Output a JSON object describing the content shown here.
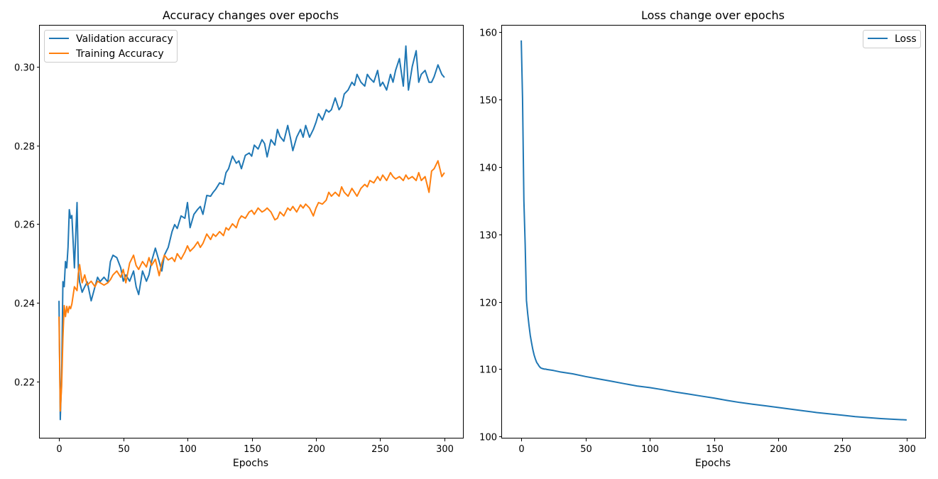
{
  "colors": {
    "blue": "#1f77b4",
    "orange": "#ff7f0e"
  },
  "chart_data": [
    {
      "type": "line",
      "title": "Accuracy changes over epochs",
      "xlabel": "Epochs",
      "ylabel": "",
      "xlim": [
        -15,
        315
      ],
      "ylim": [
        0.2055,
        0.3105
      ],
      "xticks": [
        0,
        50,
        100,
        150,
        200,
        250,
        300
      ],
      "yticks": [
        0.22,
        0.24,
        0.26,
        0.28,
        0.3
      ],
      "ytick_labels": [
        "0.22",
        "0.24",
        "0.26",
        "0.28",
        "0.30"
      ],
      "legend": "top-left",
      "grid": false,
      "series": [
        {
          "name": "Validation accuracy",
          "color": "#1f77b4",
          "x": [
            0,
            1,
            2,
            3,
            4,
            5,
            6,
            7,
            8,
            9,
            10,
            12,
            14,
            15,
            16,
            18,
            20,
            22,
            25,
            28,
            30,
            32,
            35,
            38,
            40,
            42,
            45,
            48,
            50,
            52,
            55,
            58,
            60,
            62,
            65,
            68,
            70,
            72,
            75,
            78,
            80,
            82,
            85,
            88,
            90,
            92,
            95,
            98,
            100,
            102,
            105,
            108,
            110,
            112,
            115,
            118,
            120,
            122,
            125,
            128,
            130,
            132,
            135,
            138,
            140,
            142,
            145,
            148,
            150,
            152,
            155,
            158,
            160,
            162,
            165,
            168,
            170,
            172,
            175,
            178,
            180,
            182,
            185,
            188,
            190,
            192,
            195,
            198,
            200,
            202,
            205,
            208,
            210,
            212,
            215,
            218,
            220,
            222,
            225,
            228,
            230,
            232,
            235,
            238,
            240,
            242,
            245,
            248,
            250,
            252,
            255,
            258,
            260,
            262,
            265,
            268,
            270,
            272,
            275,
            278,
            280,
            282,
            285,
            288,
            290,
            292,
            295,
            298,
            300
          ],
          "values": [
            0.2405,
            0.2103,
            0.2212,
            0.2454,
            0.2441,
            0.2505,
            0.2489,
            0.2541,
            0.2637,
            0.2615,
            0.2622,
            0.2489,
            0.2655,
            0.2491,
            0.2453,
            0.2427,
            0.2441,
            0.2453,
            0.2405,
            0.2441,
            0.2465,
            0.2454,
            0.2465,
            0.2453,
            0.2505,
            0.2521,
            0.2515,
            0.2489,
            0.2455,
            0.2471,
            0.2455,
            0.2481,
            0.2441,
            0.2421,
            0.2481,
            0.2455,
            0.2471,
            0.2505,
            0.2539,
            0.2505,
            0.2481,
            0.2521,
            0.2541,
            0.2581,
            0.2599,
            0.2589,
            0.2621,
            0.2615,
            0.2655,
            0.2591,
            0.2625,
            0.2638,
            0.2645,
            0.2625,
            0.2673,
            0.2671,
            0.2681,
            0.2689,
            0.2705,
            0.2701,
            0.2731,
            0.2741,
            0.2773,
            0.2755,
            0.2761,
            0.2741,
            0.2775,
            0.2781,
            0.2773,
            0.2801,
            0.2791,
            0.2815,
            0.2805,
            0.2771,
            0.2815,
            0.2801,
            0.2841,
            0.2823,
            0.2811,
            0.2851,
            0.2821,
            0.2787,
            0.2821,
            0.2841,
            0.2821,
            0.2851,
            0.2821,
            0.2841,
            0.2859,
            0.2881,
            0.2865,
            0.2891,
            0.2885,
            0.2891,
            0.2921,
            0.2891,
            0.2901,
            0.2931,
            0.2941,
            0.2961,
            0.2953,
            0.2981,
            0.2961,
            0.2951,
            0.2981,
            0.2971,
            0.2961,
            0.2991,
            0.2951,
            0.2961,
            0.2941,
            0.2981,
            0.2961,
            0.2991,
            0.3021,
            0.2951,
            0.3053,
            0.2941,
            0.3001,
            0.3041,
            0.2961,
            0.2981,
            0.2991,
            0.2961,
            0.2961,
            0.2975,
            0.3005,
            0.2981,
            0.2973
          ]
        },
        {
          "name": "Training Accuracy",
          "color": "#ff7f0e",
          "x": [
            0,
            1,
            2,
            3,
            4,
            5,
            6,
            7,
            8,
            9,
            10,
            12,
            14,
            15,
            16,
            18,
            20,
            22,
            25,
            28,
            30,
            32,
            35,
            38,
            40,
            42,
            45,
            48,
            50,
            52,
            55,
            58,
            60,
            62,
            65,
            68,
            70,
            72,
            75,
            78,
            80,
            82,
            85,
            88,
            90,
            92,
            95,
            98,
            100,
            102,
            105,
            108,
            110,
            112,
            115,
            118,
            120,
            122,
            125,
            128,
            130,
            132,
            135,
            138,
            140,
            142,
            145,
            148,
            150,
            152,
            155,
            158,
            160,
            162,
            165,
            168,
            170,
            172,
            175,
            178,
            180,
            182,
            185,
            188,
            190,
            192,
            195,
            198,
            200,
            202,
            205,
            208,
            210,
            212,
            215,
            218,
            220,
            222,
            225,
            228,
            230,
            232,
            235,
            238,
            240,
            242,
            245,
            248,
            250,
            252,
            255,
            258,
            260,
            262,
            265,
            268,
            270,
            272,
            275,
            278,
            280,
            282,
            285,
            288,
            290,
            292,
            295,
            298,
            300
          ],
          "values": [
            0.2365,
            0.2125,
            0.2188,
            0.2311,
            0.2393,
            0.2365,
            0.2391,
            0.2375,
            0.2391,
            0.2385,
            0.2397,
            0.2441,
            0.2431,
            0.2475,
            0.2497,
            0.2451,
            0.2471,
            0.2445,
            0.2455,
            0.2441,
            0.2455,
            0.2451,
            0.2445,
            0.2451,
            0.2459,
            0.2471,
            0.2481,
            0.2465,
            0.2485,
            0.2451,
            0.2501,
            0.2521,
            0.2495,
            0.2485,
            0.2505,
            0.2491,
            0.2515,
            0.2495,
            0.2511,
            0.2469,
            0.2501,
            0.2521,
            0.2509,
            0.2515,
            0.2505,
            0.2525,
            0.2511,
            0.2529,
            0.2545,
            0.2531,
            0.2541,
            0.2555,
            0.2541,
            0.2551,
            0.2575,
            0.2561,
            0.2575,
            0.2569,
            0.2581,
            0.2571,
            0.2591,
            0.2585,
            0.2601,
            0.2591,
            0.2611,
            0.2621,
            0.2615,
            0.2631,
            0.2635,
            0.2625,
            0.2641,
            0.2631,
            0.2635,
            0.2641,
            0.2631,
            0.2611,
            0.2615,
            0.2631,
            0.2621,
            0.2641,
            0.2635,
            0.2645,
            0.2631,
            0.2649,
            0.2641,
            0.2651,
            0.2641,
            0.2621,
            0.2641,
            0.2655,
            0.2651,
            0.2661,
            0.2681,
            0.2671,
            0.2681,
            0.2671,
            0.2695,
            0.2681,
            0.2671,
            0.2691,
            0.2681,
            0.2671,
            0.2691,
            0.2701,
            0.2695,
            0.2711,
            0.2705,
            0.2721,
            0.2711,
            0.2725,
            0.2711,
            0.2731,
            0.2721,
            0.2715,
            0.2721,
            0.2711,
            0.2725,
            0.2715,
            0.2721,
            0.2711,
            0.2731,
            0.2711,
            0.2721,
            0.2681,
            0.2735,
            0.2741,
            0.2761,
            0.2721,
            0.2731
          ]
        }
      ]
    },
    {
      "type": "line",
      "title": "Loss change over epochs",
      "xlabel": "Epochs",
      "ylabel": "",
      "xlim": [
        -15,
        315
      ],
      "ylim": [
        99.7,
        161.0
      ],
      "xticks": [
        0,
        50,
        100,
        150,
        200,
        250,
        300
      ],
      "yticks": [
        100,
        110,
        120,
        130,
        140,
        150,
        160
      ],
      "ytick_labels": [
        "100",
        "110",
        "120",
        "130",
        "140",
        "150",
        "160"
      ],
      "legend": "top-right",
      "grid": false,
      "series": [
        {
          "name": "Loss",
          "color": "#1f77b4",
          "x": [
            0,
            1,
            2,
            3,
            4,
            5,
            6,
            7,
            8,
            9,
            10,
            11,
            12,
            13,
            14,
            15,
            16,
            17,
            18,
            19,
            20,
            25,
            30,
            40,
            50,
            60,
            70,
            80,
            90,
            100,
            110,
            120,
            130,
            140,
            150,
            160,
            170,
            180,
            190,
            200,
            210,
            220,
            230,
            240,
            250,
            260,
            270,
            280,
            290,
            300
          ],
          "values": [
            158.8,
            150.2,
            135.0,
            128.5,
            120.2,
            118.2,
            116.5,
            115.0,
            113.9,
            112.9,
            112.1,
            111.5,
            111.0,
            110.7,
            110.4,
            110.2,
            110.1,
            110.05,
            110.0,
            110.0,
            109.95,
            109.8,
            109.6,
            109.3,
            108.9,
            108.55,
            108.2,
            107.85,
            107.5,
            107.25,
            106.95,
            106.6,
            106.3,
            106.0,
            105.7,
            105.35,
            105.05,
            104.8,
            104.55,
            104.3,
            104.05,
            103.8,
            103.55,
            103.35,
            103.15,
            102.95,
            102.8,
            102.65,
            102.55,
            102.45
          ]
        }
      ]
    }
  ]
}
